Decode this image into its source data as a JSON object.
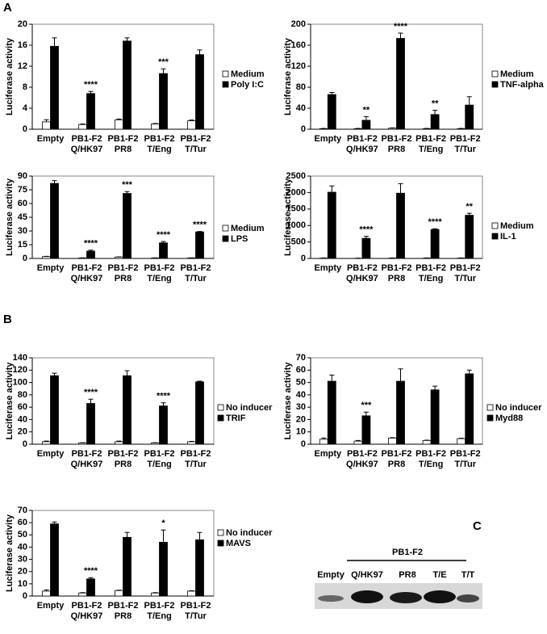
{
  "panel_labels": [
    "A",
    "B",
    "C"
  ],
  "chart_data": [
    {
      "type": "bar",
      "ylabel": "Luciferase activity",
      "categories": [
        "Empty",
        "PB1-F2 Q/HK97",
        "PB1-F2 PR8",
        "PB1-F2 T/Eng",
        "PB1-F2 T/Tur"
      ],
      "series": [
        {
          "name": "Medium",
          "color": "#ffffff",
          "values": [
            1.4,
            0.9,
            1.8,
            1.0,
            1.6
          ],
          "errors": [
            0.4,
            0.1,
            0.15,
            0.1,
            0.15
          ]
        },
        {
          "name": "Poly I:C",
          "color": "#000000",
          "values": [
            15.8,
            6.8,
            16.8,
            10.6,
            14.2
          ],
          "errors": [
            1.6,
            0.4,
            0.6,
            0.9,
            0.9
          ]
        }
      ],
      "annotations": [
        null,
        "****",
        null,
        "***",
        null
      ],
      "ylim": [
        0,
        20
      ],
      "yticks": [
        0,
        4,
        8,
        12,
        16,
        20
      ]
    },
    {
      "type": "bar",
      "ylabel": "Luciferase activity",
      "categories": [
        "Empty",
        "PB1-F2 Q/HK97",
        "PB1-F2 PR8",
        "PB1-F2 T/Eng",
        "PB1-F2 T/Tur"
      ],
      "series": [
        {
          "name": "Medium",
          "color": "#ffffff",
          "values": [
            1,
            1,
            2,
            1,
            1
          ],
          "errors": [
            0.5,
            0.5,
            0.5,
            0.5,
            0.5
          ]
        },
        {
          "name": "TNF-alpha",
          "color": "#000000",
          "values": [
            66,
            17,
            173,
            28,
            46
          ],
          "errors": [
            4,
            7,
            10,
            8,
            16
          ]
        }
      ],
      "annotations": [
        null,
        "**",
        "****",
        "**",
        null
      ],
      "ylim": [
        0,
        200
      ],
      "yticks": [
        0,
        40,
        80,
        120,
        160,
        200
      ]
    },
    {
      "type": "bar",
      "ylabel": "Luciferase activity",
      "categories": [
        "Empty",
        "PB1-F2 Q/HK97",
        "PB1-F2 PR8",
        "PB1-F2 T/Eng",
        "PB1-F2 T/Tur"
      ],
      "series": [
        {
          "name": "Medium",
          "color": "#ffffff",
          "values": [
            2,
            0.5,
            1.5,
            0.5,
            0.5
          ],
          "errors": [
            0.3,
            0.2,
            0.3,
            0.2,
            0.2
          ]
        },
        {
          "name": "LPS",
          "color": "#000000",
          "values": [
            82,
            8,
            71,
            17,
            29
          ],
          "errors": [
            3,
            1,
            2,
            1.5,
            0.5
          ]
        }
      ],
      "annotations": [
        null,
        "****",
        "***",
        "****",
        "****"
      ],
      "ylim": [
        0,
        90
      ],
      "yticks": [
        0,
        15,
        30,
        45,
        60,
        75,
        90
      ]
    },
    {
      "type": "bar",
      "ylabel": "Luciferase activity",
      "categories": [
        "Empty",
        "PB1-F2 Q/HK97",
        "PB1-F2 PR8",
        "PB1-F2 T/Eng",
        "PB1-F2 T/Tur"
      ],
      "series": [
        {
          "name": "Medium",
          "color": "#ffffff",
          "values": [
            10,
            5,
            10,
            10,
            10
          ],
          "errors": [
            5,
            3,
            5,
            5,
            5
          ]
        },
        {
          "name": "IL-1",
          "color": "#000000",
          "values": [
            2010,
            610,
            1980,
            880,
            1310
          ],
          "errors": [
            190,
            60,
            290,
            20,
            60
          ]
        }
      ],
      "annotations": [
        null,
        "****",
        null,
        "****",
        "**"
      ],
      "ylim": [
        0,
        2500
      ],
      "yticks": [
        0,
        500,
        1000,
        1500,
        2000,
        2500
      ]
    },
    {
      "type": "bar",
      "ylabel": "Luciferase activity",
      "categories": [
        "Empty",
        "PB1-F2 Q/HK97",
        "PB1-F2 PR8",
        "PB1-F2 T/Eng",
        "PB1-F2 T/Tur"
      ],
      "series": [
        {
          "name": "No inducer",
          "color": "#ffffff",
          "values": [
            4,
            2,
            4,
            2,
            4
          ],
          "errors": [
            1,
            0.5,
            1,
            0.5,
            0.5
          ]
        },
        {
          "name": "TRIF",
          "color": "#000000",
          "values": [
            111,
            66,
            111,
            62,
            101
          ],
          "errors": [
            4,
            7,
            8,
            5,
            1
          ]
        }
      ],
      "annotations": [
        null,
        "****",
        null,
        "****",
        null
      ],
      "ylim": [
        0,
        140
      ],
      "yticks": [
        0,
        20,
        40,
        60,
        80,
        100,
        120,
        140
      ]
    },
    {
      "type": "bar",
      "ylabel": "Luciferase activity",
      "categories": [
        "Empty",
        "PB1-F2 Q/HK97",
        "PB1-F2 PR8",
        "PB1-F2 T/Eng",
        "PB1-F2 T/Tur"
      ],
      "series": [
        {
          "name": "No inducer",
          "color": "#ffffff",
          "values": [
            4,
            2.5,
            5,
            3,
            4.5
          ],
          "errors": [
            1,
            0.5,
            0.3,
            0.3,
            0.3
          ]
        },
        {
          "name": "Myd88",
          "color": "#000000",
          "values": [
            51,
            23,
            51,
            44,
            57
          ],
          "errors": [
            5,
            3,
            10,
            3,
            3
          ]
        }
      ],
      "annotations": [
        null,
        "***",
        null,
        null,
        null
      ],
      "ylim": [
        0,
        70
      ],
      "yticks": [
        0,
        10,
        20,
        30,
        40,
        50,
        60,
        70
      ]
    },
    {
      "type": "bar",
      "ylabel": "Luciferase activity",
      "categories": [
        "Empty",
        "PB1-F2 Q/HK97",
        "PB1-F2 PR8",
        "PB1-F2 T/Eng",
        "PB1-F2 T/Tur"
      ],
      "series": [
        {
          "name": "No inducer",
          "color": "#ffffff",
          "values": [
            4,
            2.5,
            4.5,
            2.5,
            4
          ],
          "errors": [
            1,
            0.3,
            0.3,
            0.3,
            0.3
          ]
        },
        {
          "name": "MAVS",
          "color": "#000000",
          "values": [
            59,
            14,
            48,
            44,
            46
          ],
          "errors": [
            1.5,
            1,
            4,
            10,
            6
          ]
        }
      ],
      "annotations": [
        null,
        "****",
        null,
        "*",
        null
      ],
      "ylim": [
        0,
        70
      ],
      "yticks": [
        0,
        10,
        20,
        30,
        40,
        50,
        60,
        70
      ]
    }
  ],
  "blot": {
    "label": "PB1-F2",
    "lanes": [
      "Empty",
      "Q/HK97",
      "PR8",
      "T/E",
      "T/T"
    ]
  }
}
